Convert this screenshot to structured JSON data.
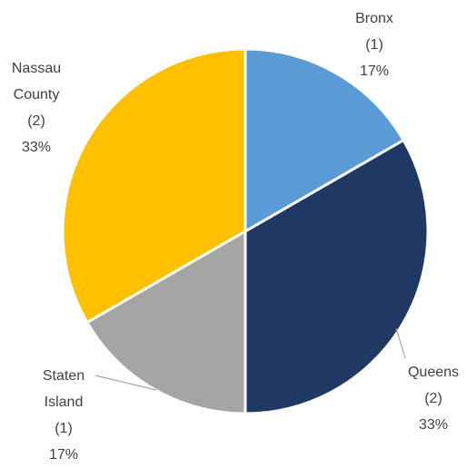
{
  "chart_data": {
    "type": "pie",
    "categories": [
      "Bronx",
      "Queens",
      "Staten Island",
      "Nassau County"
    ],
    "values": [
      1,
      2,
      1,
      2
    ],
    "value_labels": [
      "(1)",
      "(2)",
      "(1)",
      "(2)"
    ],
    "percent_labels": [
      "17%",
      "33%",
      "17%",
      "33%"
    ],
    "colors": [
      "#5b9bd5",
      "#203864",
      "#a5a5a5",
      "#ffc000"
    ]
  }
}
